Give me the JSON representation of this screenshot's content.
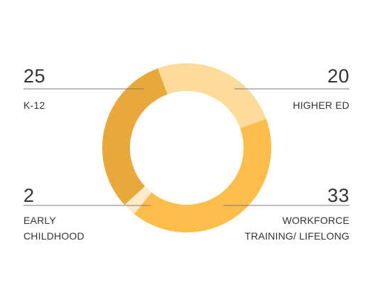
{
  "chart_data": {
    "type": "pie",
    "donut": true,
    "categories": [
      "HIGHER ED",
      "WORKFORCE\nTRAINING/ LIFELONG",
      "EARLY\nCHILDHOOD",
      "K-12"
    ],
    "values": [
      20,
      33,
      2,
      25
    ],
    "colors": [
      "#fddc9b",
      "#fdbd4b",
      "#fdebc9",
      "#e9a93a"
    ],
    "legend": "callouts-around-chart",
    "grid": false
  }
}
